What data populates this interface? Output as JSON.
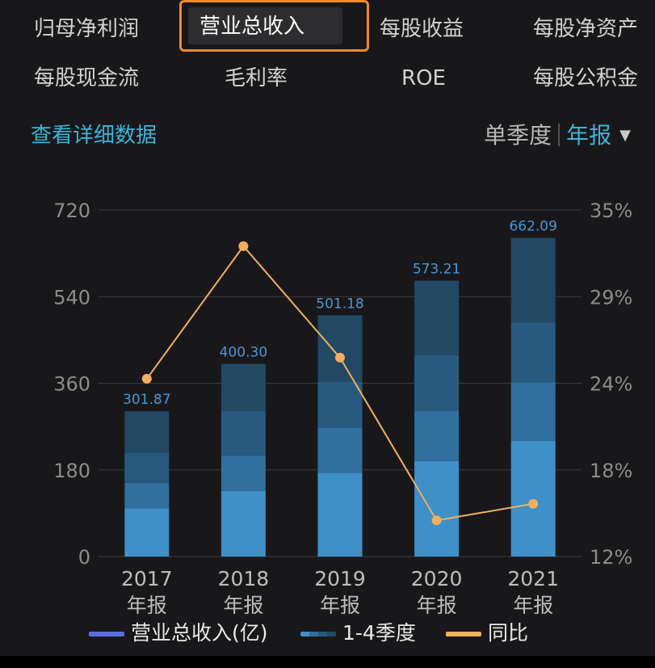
{
  "tabs": [
    {
      "label": "归母净利润",
      "active": false
    },
    {
      "label": "营业总收入",
      "active": true
    },
    {
      "label": "每股收益",
      "active": false
    },
    {
      "label": "每股净资产",
      "active": false
    },
    {
      "label": "每股现金流",
      "active": false
    },
    {
      "label": "毛利率",
      "active": false
    },
    {
      "label": "ROE",
      "active": false
    },
    {
      "label": "每股公积金",
      "active": false
    }
  ],
  "detail_link": "查看详细数据",
  "period": {
    "quarterly": "单季度",
    "annual": "年报",
    "selected": "年报"
  },
  "colors": {
    "accent_orange": "#f08a30",
    "link_blue": "#3fb2d8",
    "line": "#f0b060",
    "q1": "#3f8fc8",
    "q2": "#316f9f",
    "q3": "#285a80",
    "q4": "#224864",
    "label": "#4a95d6"
  },
  "chart_data": {
    "type": "bar",
    "categories": [
      "2017\n年报",
      "2018\n年报",
      "2019\n年报",
      "2020\n年报",
      "2021\n年报"
    ],
    "category_years": [
      "2017",
      "2018",
      "2019",
      "2020",
      "2021"
    ],
    "category_suffix": "年报",
    "totals": [
      301.87,
      400.3,
      501.18,
      573.21,
      662.09
    ],
    "total_labels": [
      "301.87",
      "400.30",
      "501.18",
      "573.21",
      "662.09"
    ],
    "quarters": [
      [
        100,
        53,
        63,
        86
      ],
      [
        136,
        74,
        92,
        98
      ],
      [
        174,
        94,
        95,
        138
      ],
      [
        198,
        104,
        116,
        155
      ],
      [
        240,
        122,
        124,
        176
      ]
    ],
    "yoy": [
      23.8,
      32.6,
      25.2,
      14.4,
      15.5
    ],
    "ylim": [
      0,
      720
    ],
    "yticks": [
      0,
      180,
      360,
      540,
      720
    ],
    "ytick_labels": [
      "0",
      "180",
      "360",
      "540",
      "720"
    ],
    "y2lim": [
      12,
      35
    ],
    "y2ticks": [
      12,
      18,
      24,
      29,
      35
    ],
    "y2tick_labels": [
      "12%",
      "18%",
      "24%",
      "29%",
      "35%"
    ],
    "grid": true,
    "legend": [
      {
        "name": "营业总收入(亿)",
        "kind": "total"
      },
      {
        "name": "1-4季度",
        "kind": "quarters"
      },
      {
        "name": "同比",
        "kind": "line"
      }
    ],
    "legend_placement": "bottom"
  }
}
